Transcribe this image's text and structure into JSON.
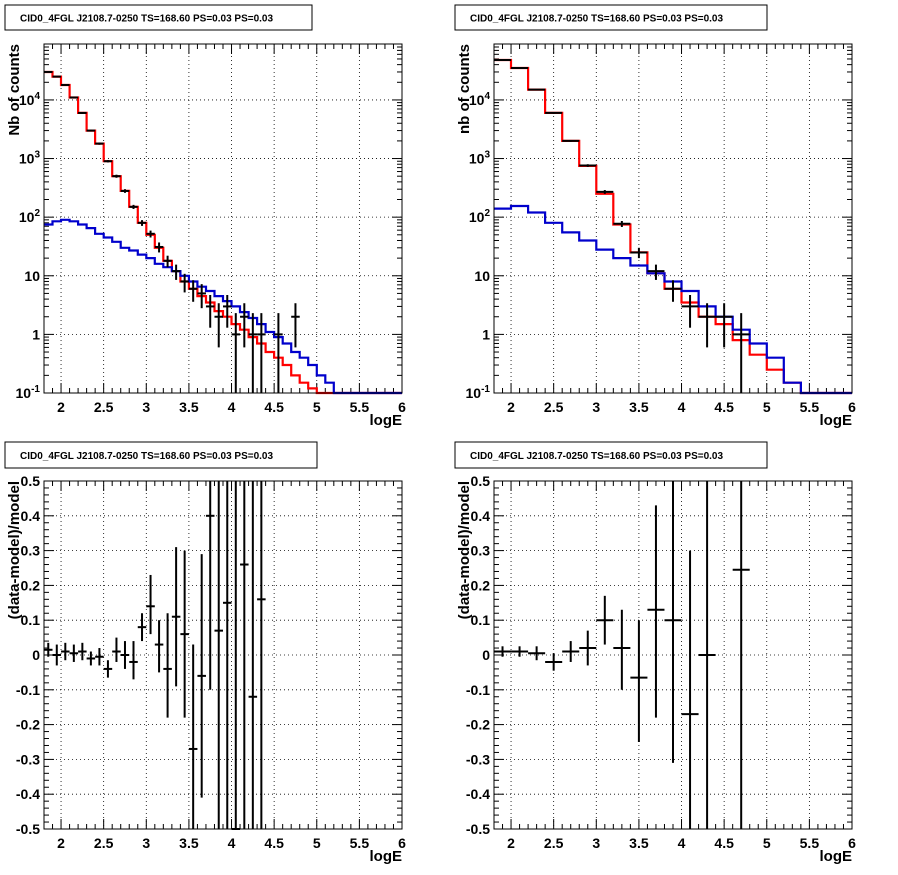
{
  "colors": {
    "total_model": "#ff0000",
    "component_model": "#0000cc",
    "data": "#000000"
  },
  "chart_data": [
    {
      "type": "line",
      "panel": "top-left",
      "title": "CID0_4FGL J2108.7-0250 TS=168.60 PS=0.03 PS=0.03",
      "xlabel": "logE",
      "ylabel": "Nb of counts",
      "xlim": [
        1.8,
        6.0
      ],
      "ylim": [
        0.1,
        90000
      ],
      "yscale": "log",
      "grid": true,
      "x_ticks": [
        "2",
        "2.5",
        "3",
        "3.5",
        "4",
        "4.5",
        "5",
        "5.5",
        "6"
      ],
      "y_ticks": [
        "10^-1",
        "1",
        "10",
        "10^2",
        "10^3",
        "10^4"
      ],
      "bin_edges": [
        1.8,
        1.9,
        2.0,
        2.1,
        2.2,
        2.3,
        2.4,
        2.5,
        2.6,
        2.7,
        2.8,
        2.9,
        3.0,
        3.1,
        3.2,
        3.3,
        3.4,
        3.5,
        3.6,
        3.7,
        3.8,
        3.9,
        4.0,
        4.1,
        4.2,
        4.3,
        4.4,
        4.5,
        4.6,
        4.7,
        4.8,
        4.9,
        5.0,
        5.1,
        5.2,
        5.3,
        5.4,
        5.5,
        5.6,
        5.7,
        5.8,
        5.9,
        6.0
      ],
      "series": [
        {
          "style": "hist",
          "color": "#ff0000",
          "values": [
            30000,
            25000,
            18000,
            11000,
            6000,
            3000,
            1800,
            900,
            500,
            280,
            150,
            80,
            50,
            30,
            18,
            12,
            8,
            6,
            4.5,
            3.5,
            2.5,
            2,
            1.5,
            1.2,
            0.9,
            0.7,
            0.5,
            0.4,
            0.3,
            0.2,
            0.15,
            0.12,
            0.1,
            0.1,
            0.1,
            0.1,
            0.1,
            0.1,
            0.1,
            0.1,
            0.1,
            0.1
          ]
        },
        {
          "style": "hist",
          "color": "#0000cc",
          "values": [
            75,
            85,
            90,
            85,
            75,
            65,
            52,
            45,
            38,
            30,
            27,
            23,
            20,
            16,
            14,
            12,
            10,
            8,
            6.5,
            5.5,
            4.5,
            3.7,
            3,
            2.4,
            1.9,
            1.5,
            1.1,
            0.9,
            0.7,
            0.5,
            0.4,
            0.3,
            0.2,
            0.15,
            0.1,
            0.1,
            0.1,
            0.1,
            0.1,
            0.1,
            0.1,
            0.1
          ]
        }
      ],
      "data_points": [
        {
          "x": 1.85,
          "y": 30000,
          "lo": 29500,
          "hi": 30500
        },
        {
          "x": 1.95,
          "y": 25000,
          "lo": 24500,
          "hi": 25500
        },
        {
          "x": 2.05,
          "y": 18000,
          "lo": 17600,
          "hi": 18400
        },
        {
          "x": 2.15,
          "y": 11000,
          "lo": 10700,
          "hi": 11300
        },
        {
          "x": 2.25,
          "y": 6000,
          "lo": 5800,
          "hi": 6200
        },
        {
          "x": 2.35,
          "y": 3000,
          "lo": 2900,
          "hi": 3100
        },
        {
          "x": 2.45,
          "y": 1800,
          "lo": 1720,
          "hi": 1880
        },
        {
          "x": 2.55,
          "y": 900,
          "lo": 860,
          "hi": 940
        },
        {
          "x": 2.65,
          "y": 500,
          "lo": 470,
          "hi": 530
        },
        {
          "x": 2.75,
          "y": 280,
          "lo": 260,
          "hi": 300
        },
        {
          "x": 2.85,
          "y": 150,
          "lo": 138,
          "hi": 162
        },
        {
          "x": 2.95,
          "y": 80,
          "lo": 71,
          "hi": 89
        },
        {
          "x": 3.05,
          "y": 52,
          "lo": 45,
          "hi": 59
        },
        {
          "x": 3.15,
          "y": 31,
          "lo": 25,
          "hi": 37
        },
        {
          "x": 3.25,
          "y": 18,
          "lo": 14,
          "hi": 22
        },
        {
          "x": 3.35,
          "y": 12,
          "lo": 8.5,
          "hi": 15.5
        },
        {
          "x": 3.45,
          "y": 8,
          "lo": 5.2,
          "hi": 10.8
        },
        {
          "x": 3.55,
          "y": 6,
          "lo": 3.6,
          "hi": 8.4
        },
        {
          "x": 3.65,
          "y": 5,
          "lo": 2.8,
          "hi": 7.2
        },
        {
          "x": 3.75,
          "y": 3,
          "lo": 1.3,
          "hi": 4.7
        },
        {
          "x": 3.85,
          "y": 2,
          "lo": 0.6,
          "hi": 3.4
        },
        {
          "x": 3.95,
          "y": 3,
          "lo": 1.3,
          "hi": 4.7
        },
        {
          "x": 4.05,
          "y": 1,
          "lo": 0.1,
          "hi": 2.3
        },
        {
          "x": 4.15,
          "y": 2,
          "lo": 0.6,
          "hi": 3.4
        },
        {
          "x": 4.25,
          "y": 1,
          "lo": 0.1,
          "hi": 2.3
        },
        {
          "x": 4.35,
          "y": 1,
          "lo": 0.1,
          "hi": 2.3
        },
        {
          "x": 4.55,
          "y": 1,
          "lo": 0.1,
          "hi": 2.3
        },
        {
          "x": 4.75,
          "y": 2,
          "lo": 0.6,
          "hi": 3.4
        }
      ]
    },
    {
      "type": "line",
      "panel": "top-right",
      "title": "CID0_4FGL J2108.7-0250 TS=168.60 PS=0.03 PS=0.03",
      "xlabel": "logE",
      "ylabel": "nb of counts",
      "xlim": [
        1.8,
        6.0
      ],
      "ylim": [
        0.1,
        90000
      ],
      "yscale": "log",
      "grid": true,
      "x_ticks": [
        "2",
        "2.5",
        "3",
        "3.5",
        "4",
        "4.5",
        "5",
        "5.5",
        "6"
      ],
      "y_ticks": [
        "10^-1",
        "1",
        "10",
        "10^2",
        "10^3",
        "10^4"
      ],
      "bin_edges": [
        1.8,
        2.0,
        2.2,
        2.4,
        2.6,
        2.8,
        3.0,
        3.2,
        3.4,
        3.6,
        3.8,
        4.0,
        4.2,
        4.4,
        4.6,
        4.8,
        5.0,
        5.2,
        5.4,
        5.6,
        5.8,
        6.0
      ],
      "series": [
        {
          "style": "hist",
          "color": "#ff0000",
          "values": [
            48000,
            35000,
            15000,
            6000,
            2000,
            750,
            250,
            75,
            25,
            11,
            6,
            3.5,
            2,
            1.5,
            0.8,
            0.45,
            0.25,
            0.15,
            0.1,
            0.1,
            0.1
          ]
        },
        {
          "style": "hist",
          "color": "#0000cc",
          "values": [
            140,
            155,
            120,
            80,
            55,
            40,
            28,
            20,
            15,
            11,
            8,
            5.5,
            3,
            2,
            1.2,
            0.7,
            0.4,
            0.15,
            0.1,
            0.1,
            0.1
          ]
        }
      ],
      "data_points": [
        {
          "x": 1.9,
          "y": 48000,
          "lo": 47500,
          "hi": 48500
        },
        {
          "x": 2.1,
          "y": 35000,
          "lo": 34500,
          "hi": 35500
        },
        {
          "x": 2.3,
          "y": 15000,
          "lo": 14700,
          "hi": 15300
        },
        {
          "x": 2.5,
          "y": 6000,
          "lo": 5800,
          "hi": 6200
        },
        {
          "x": 2.7,
          "y": 2000,
          "lo": 1930,
          "hi": 2070
        },
        {
          "x": 2.9,
          "y": 760,
          "lo": 720,
          "hi": 800
        },
        {
          "x": 3.1,
          "y": 270,
          "lo": 250,
          "hi": 290
        },
        {
          "x": 3.3,
          "y": 77,
          "lo": 68,
          "hi": 86
        },
        {
          "x": 3.5,
          "y": 25,
          "lo": 20,
          "hi": 30
        },
        {
          "x": 3.7,
          "y": 12,
          "lo": 8.5,
          "hi": 15.5
        },
        {
          "x": 3.9,
          "y": 6,
          "lo": 3.6,
          "hi": 8.4
        },
        {
          "x": 4.1,
          "y": 3,
          "lo": 1.3,
          "hi": 4.7
        },
        {
          "x": 4.3,
          "y": 2,
          "lo": 0.6,
          "hi": 3.4
        },
        {
          "x": 4.5,
          "y": 2,
          "lo": 0.6,
          "hi": 3.4
        },
        {
          "x": 4.7,
          "y": 1,
          "lo": 0.1,
          "hi": 2.3
        }
      ]
    },
    {
      "type": "scatter",
      "panel": "bottom-left",
      "title": "CID0_4FGL J2108.7-0250 TS=168.60 PS=0.03 PS=0.03",
      "xlabel": "logE",
      "ylabel": "(data-model)/model",
      "xlim": [
        1.8,
        6.0
      ],
      "ylim": [
        -0.5,
        0.5
      ],
      "grid": true,
      "x_ticks": [
        "2",
        "2.5",
        "3",
        "3.5",
        "4",
        "4.5",
        "5",
        "5.5",
        "6"
      ],
      "y_ticks": [
        "-0.5",
        "-0.4",
        "-0.3",
        "-0.2",
        "-0.1",
        "0",
        "0.1",
        "0.2",
        "0.3",
        "0.4",
        "0.5"
      ],
      "bin_half_width": 0.05,
      "data_points": [
        {
          "x": 1.85,
          "y": 0.015,
          "lo": -0.005,
          "hi": 0.035
        },
        {
          "x": 1.95,
          "y": 0.0,
          "lo": -0.03,
          "hi": 0.03
        },
        {
          "x": 2.05,
          "y": 0.01,
          "lo": -0.015,
          "hi": 0.035
        },
        {
          "x": 2.15,
          "y": 0.005,
          "lo": -0.02,
          "hi": 0.03
        },
        {
          "x": 2.25,
          "y": 0.01,
          "lo": -0.015,
          "hi": 0.035
        },
        {
          "x": 2.35,
          "y": -0.01,
          "lo": -0.03,
          "hi": 0.01
        },
        {
          "x": 2.45,
          "y": -0.005,
          "lo": -0.03,
          "hi": 0.02
        },
        {
          "x": 2.55,
          "y": -0.04,
          "lo": -0.065,
          "hi": -0.015
        },
        {
          "x": 2.65,
          "y": 0.01,
          "lo": -0.02,
          "hi": 0.05
        },
        {
          "x": 2.75,
          "y": 0.0,
          "lo": -0.04,
          "hi": 0.04
        },
        {
          "x": 2.85,
          "y": -0.02,
          "lo": -0.07,
          "hi": 0.04
        },
        {
          "x": 2.95,
          "y": 0.08,
          "lo": 0.04,
          "hi": 0.12
        },
        {
          "x": 3.05,
          "y": 0.14,
          "lo": 0.06,
          "hi": 0.23
        },
        {
          "x": 3.15,
          "y": 0.03,
          "lo": -0.05,
          "hi": 0.1
        },
        {
          "x": 3.25,
          "y": -0.04,
          "lo": -0.18,
          "hi": 0.12
        },
        {
          "x": 3.35,
          "y": 0.11,
          "lo": -0.09,
          "hi": 0.31
        },
        {
          "x": 3.45,
          "y": 0.06,
          "lo": -0.18,
          "hi": 0.3
        },
        {
          "x": 3.55,
          "y": -0.27,
          "lo": -0.5,
          "hi": 0.03
        },
        {
          "x": 3.65,
          "y": -0.06,
          "lo": -0.41,
          "hi": 0.29
        },
        {
          "x": 3.75,
          "y": 0.4,
          "lo": -0.1,
          "hi": 0.5
        },
        {
          "x": 3.85,
          "y": 0.07,
          "lo": -0.5,
          "hi": 0.5
        },
        {
          "x": 3.95,
          "y": 0.15,
          "lo": -0.5,
          "hi": 0.5
        },
        {
          "x": 4.05,
          "y": -0.5,
          "lo": -0.5,
          "hi": 0.5
        },
        {
          "x": 4.15,
          "y": 0.26,
          "lo": -0.5,
          "hi": 0.5
        },
        {
          "x": 4.25,
          "y": -0.12,
          "lo": -0.5,
          "hi": 0.5
        },
        {
          "x": 4.35,
          "y": 0.16,
          "lo": -0.5,
          "hi": 0.5
        }
      ]
    },
    {
      "type": "scatter",
      "panel": "bottom-right",
      "title": "CID0_4FGL J2108.7-0250 TS=168.60 PS=0.03 PS=0.03",
      "xlabel": "logE",
      "ylabel": "(data-model)/model",
      "xlim": [
        1.8,
        6.0
      ],
      "ylim": [
        -0.5,
        0.5
      ],
      "grid": true,
      "x_ticks": [
        "2",
        "2.5",
        "3",
        "3.5",
        "4",
        "4.5",
        "5",
        "5.5",
        "6"
      ],
      "y_ticks": [
        "-0.5",
        "-0.4",
        "-0.3",
        "-0.2",
        "-0.1",
        "0",
        "0.1",
        "0.2",
        "0.3",
        "0.4",
        "0.5"
      ],
      "bin_half_width": 0.1,
      "data_points": [
        {
          "x": 1.9,
          "y": 0.01,
          "lo": -0.005,
          "hi": 0.025
        },
        {
          "x": 2.1,
          "y": 0.01,
          "lo": -0.005,
          "hi": 0.025
        },
        {
          "x": 2.3,
          "y": 0.005,
          "lo": -0.015,
          "hi": 0.025
        },
        {
          "x": 2.5,
          "y": -0.02,
          "lo": -0.045,
          "hi": 0.005
        },
        {
          "x": 2.7,
          "y": 0.01,
          "lo": -0.02,
          "hi": 0.04
        },
        {
          "x": 2.9,
          "y": 0.02,
          "lo": -0.03,
          "hi": 0.07
        },
        {
          "x": 3.1,
          "y": 0.1,
          "lo": 0.03,
          "hi": 0.17
        },
        {
          "x": 3.3,
          "y": 0.02,
          "lo": -0.1,
          "hi": 0.13
        },
        {
          "x": 3.5,
          "y": -0.065,
          "lo": -0.25,
          "hi": 0.1
        },
        {
          "x": 3.7,
          "y": 0.13,
          "lo": -0.18,
          "hi": 0.43
        },
        {
          "x": 3.9,
          "y": 0.1,
          "lo": -0.31,
          "hi": 0.5
        },
        {
          "x": 4.1,
          "y": -0.17,
          "lo": -0.5,
          "hi": 0.3
        },
        {
          "x": 4.3,
          "y": 0.0,
          "lo": -0.5,
          "hi": 0.5
        },
        {
          "x": 4.7,
          "y": 0.245,
          "lo": -0.5,
          "hi": 0.5
        }
      ]
    }
  ]
}
